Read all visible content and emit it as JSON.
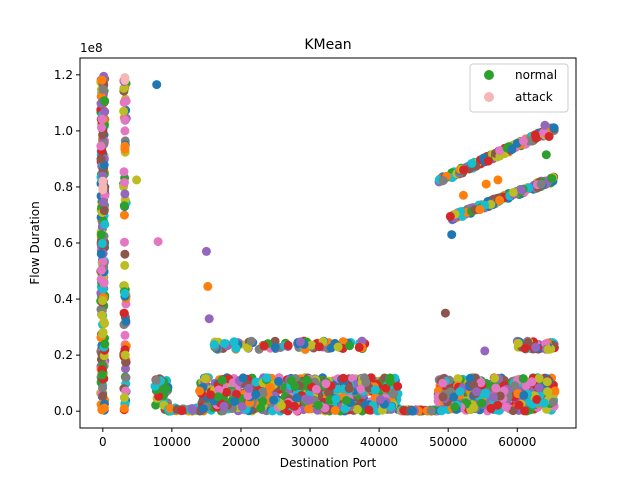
{
  "chart_data": {
    "type": "scatter",
    "title": "KMean",
    "xlabel": "Destination Port",
    "ylabel": "Flow Duration",
    "y_offset_label": "1e8",
    "xlim": [
      -3300,
      68500
    ],
    "ylim": [
      -0.06,
      1.26
    ],
    "x_ticks": [
      0,
      10000,
      20000,
      30000,
      40000,
      50000,
      60000
    ],
    "y_ticks": [
      0.0,
      0.2,
      0.4,
      0.6,
      0.8,
      1.0,
      1.2
    ],
    "y_tick_labels": [
      "0.0",
      "0.2",
      "0.4",
      "0.6",
      "0.8",
      "1.0",
      "1.2"
    ],
    "legend_position": "upper right",
    "legend": [
      {
        "label": "normal",
        "color": "#2ca02c"
      },
      {
        "label": "attack",
        "color": "#f7b6b6"
      }
    ],
    "palette": [
      "#1f77b4",
      "#ff7f0e",
      "#2ca02c",
      "#d62728",
      "#9467bd",
      "#8c564b",
      "#e377c2",
      "#7f7f7f",
      "#bcbd22",
      "#17becf"
    ],
    "series": [
      {
        "name": "normal",
        "color": "#2ca02c",
        "clusters": [
          {
            "x": [
              -300,
              300
            ],
            "y": [
              0.0,
              1.2
            ],
            "n": 260,
            "colors": "mixed"
          },
          {
            "x": [
              3000,
              3400
            ],
            "y": [
              0.0,
              1.2
            ],
            "n": 70,
            "colors": "mixed"
          },
          {
            "x": [
              7500,
              9500
            ],
            "y": [
              0.0,
              0.12
            ],
            "n": 25,
            "colors": "mixed"
          },
          {
            "x": [
              9500,
              15000
            ],
            "y": [
              0.0,
              0.012
            ],
            "n": 40,
            "colors": "mixed"
          },
          {
            "x": [
              14000,
              43000
            ],
            "y": [
              0.0,
              0.12
            ],
            "n": 650,
            "colors": "mixed"
          },
          {
            "x": [
              43000,
              48500
            ],
            "y": [
              0.0,
              0.005
            ],
            "n": 60,
            "colors": "mixed"
          },
          {
            "x": [
              48500,
              65500
            ],
            "y": [
              0.0,
              0.12
            ],
            "n": 420,
            "colors": "mixed"
          },
          {
            "x": [
              16000,
              38000
            ],
            "y": [
              0.22,
              0.25
            ],
            "n": 90,
            "colors": "mixed"
          },
          {
            "x": [
              60000,
              65500
            ],
            "y": [
              0.22,
              0.25
            ],
            "n": 50,
            "colors": "mixed"
          }
        ],
        "bands": [
          {
            "x": [
              48500,
              65500
            ],
            "y_start": 0.82,
            "y_end": 1.01,
            "n": 170,
            "colors": "mixed"
          },
          {
            "x": [
              50500,
              65500
            ],
            "y_start": 0.69,
            "y_end": 0.83,
            "n": 170,
            "colors": "mixed"
          }
        ],
        "points": [
          {
            "x": 7800,
            "y": 1.165,
            "color": "#1f77b4"
          },
          {
            "x": 4900,
            "y": 0.825,
            "color": "#bcbd22"
          },
          {
            "x": 3200,
            "y": 0.775,
            "color": "#9467bd"
          },
          {
            "x": 3200,
            "y": 0.56,
            "color": "#8c564b"
          },
          {
            "x": 3200,
            "y": 0.41,
            "color": "#1f77b4"
          },
          {
            "x": 3200,
            "y": 0.42,
            "color": "#17becf"
          },
          {
            "x": 3200,
            "y": 0.945,
            "color": "#ff7f0e"
          },
          {
            "x": 3200,
            "y": 0.935,
            "color": "#ff7f0e"
          },
          {
            "x": 3200,
            "y": 1.04,
            "color": "#e377c2"
          },
          {
            "x": 3200,
            "y": 1.0,
            "color": "#e377c2"
          },
          {
            "x": 15000,
            "y": 0.57,
            "color": "#9467bd"
          },
          {
            "x": 15200,
            "y": 0.445,
            "color": "#ff7f0e"
          },
          {
            "x": 15400,
            "y": 0.33,
            "color": "#9467bd"
          },
          {
            "x": 49600,
            "y": 0.35,
            "color": "#8c564b"
          },
          {
            "x": 50300,
            "y": 0.695,
            "color": "#d62728"
          },
          {
            "x": 50500,
            "y": 0.63,
            "color": "#1f77b4"
          },
          {
            "x": 55300,
            "y": 0.215,
            "color": "#9467bd"
          },
          {
            "x": 64200,
            "y": 0.915,
            "color": "#2ca02c"
          },
          {
            "x": 64600,
            "y": 0.98,
            "color": "#d62728"
          },
          {
            "x": 64000,
            "y": 1.02,
            "color": "#9467bd"
          },
          {
            "x": 65000,
            "y": 0.83,
            "color": "#2ca02c"
          },
          {
            "x": 55500,
            "y": 0.81,
            "color": "#ff7f0e"
          },
          {
            "x": 57200,
            "y": 0.825,
            "color": "#ff7f0e"
          },
          {
            "x": 52200,
            "y": 0.77,
            "color": "#ff7f0e"
          }
        ]
      },
      {
        "name": "attack",
        "color": "#f7b6b6",
        "points": [
          {
            "x": 0,
            "y": 0.8,
            "color": "#f7b6b6"
          },
          {
            "x": 0,
            "y": 0.82,
            "color": "#f7b6b6"
          },
          {
            "x": 0,
            "y": 0.79,
            "color": "#f7b6b6"
          },
          {
            "x": 3200,
            "y": 1.18,
            "color": "#f7b6b6"
          },
          {
            "x": 3200,
            "y": 1.19,
            "color": "#f7b6b6"
          },
          {
            "x": 8000,
            "y": 0.605,
            "color": "#e377c2"
          }
        ]
      }
    ]
  }
}
